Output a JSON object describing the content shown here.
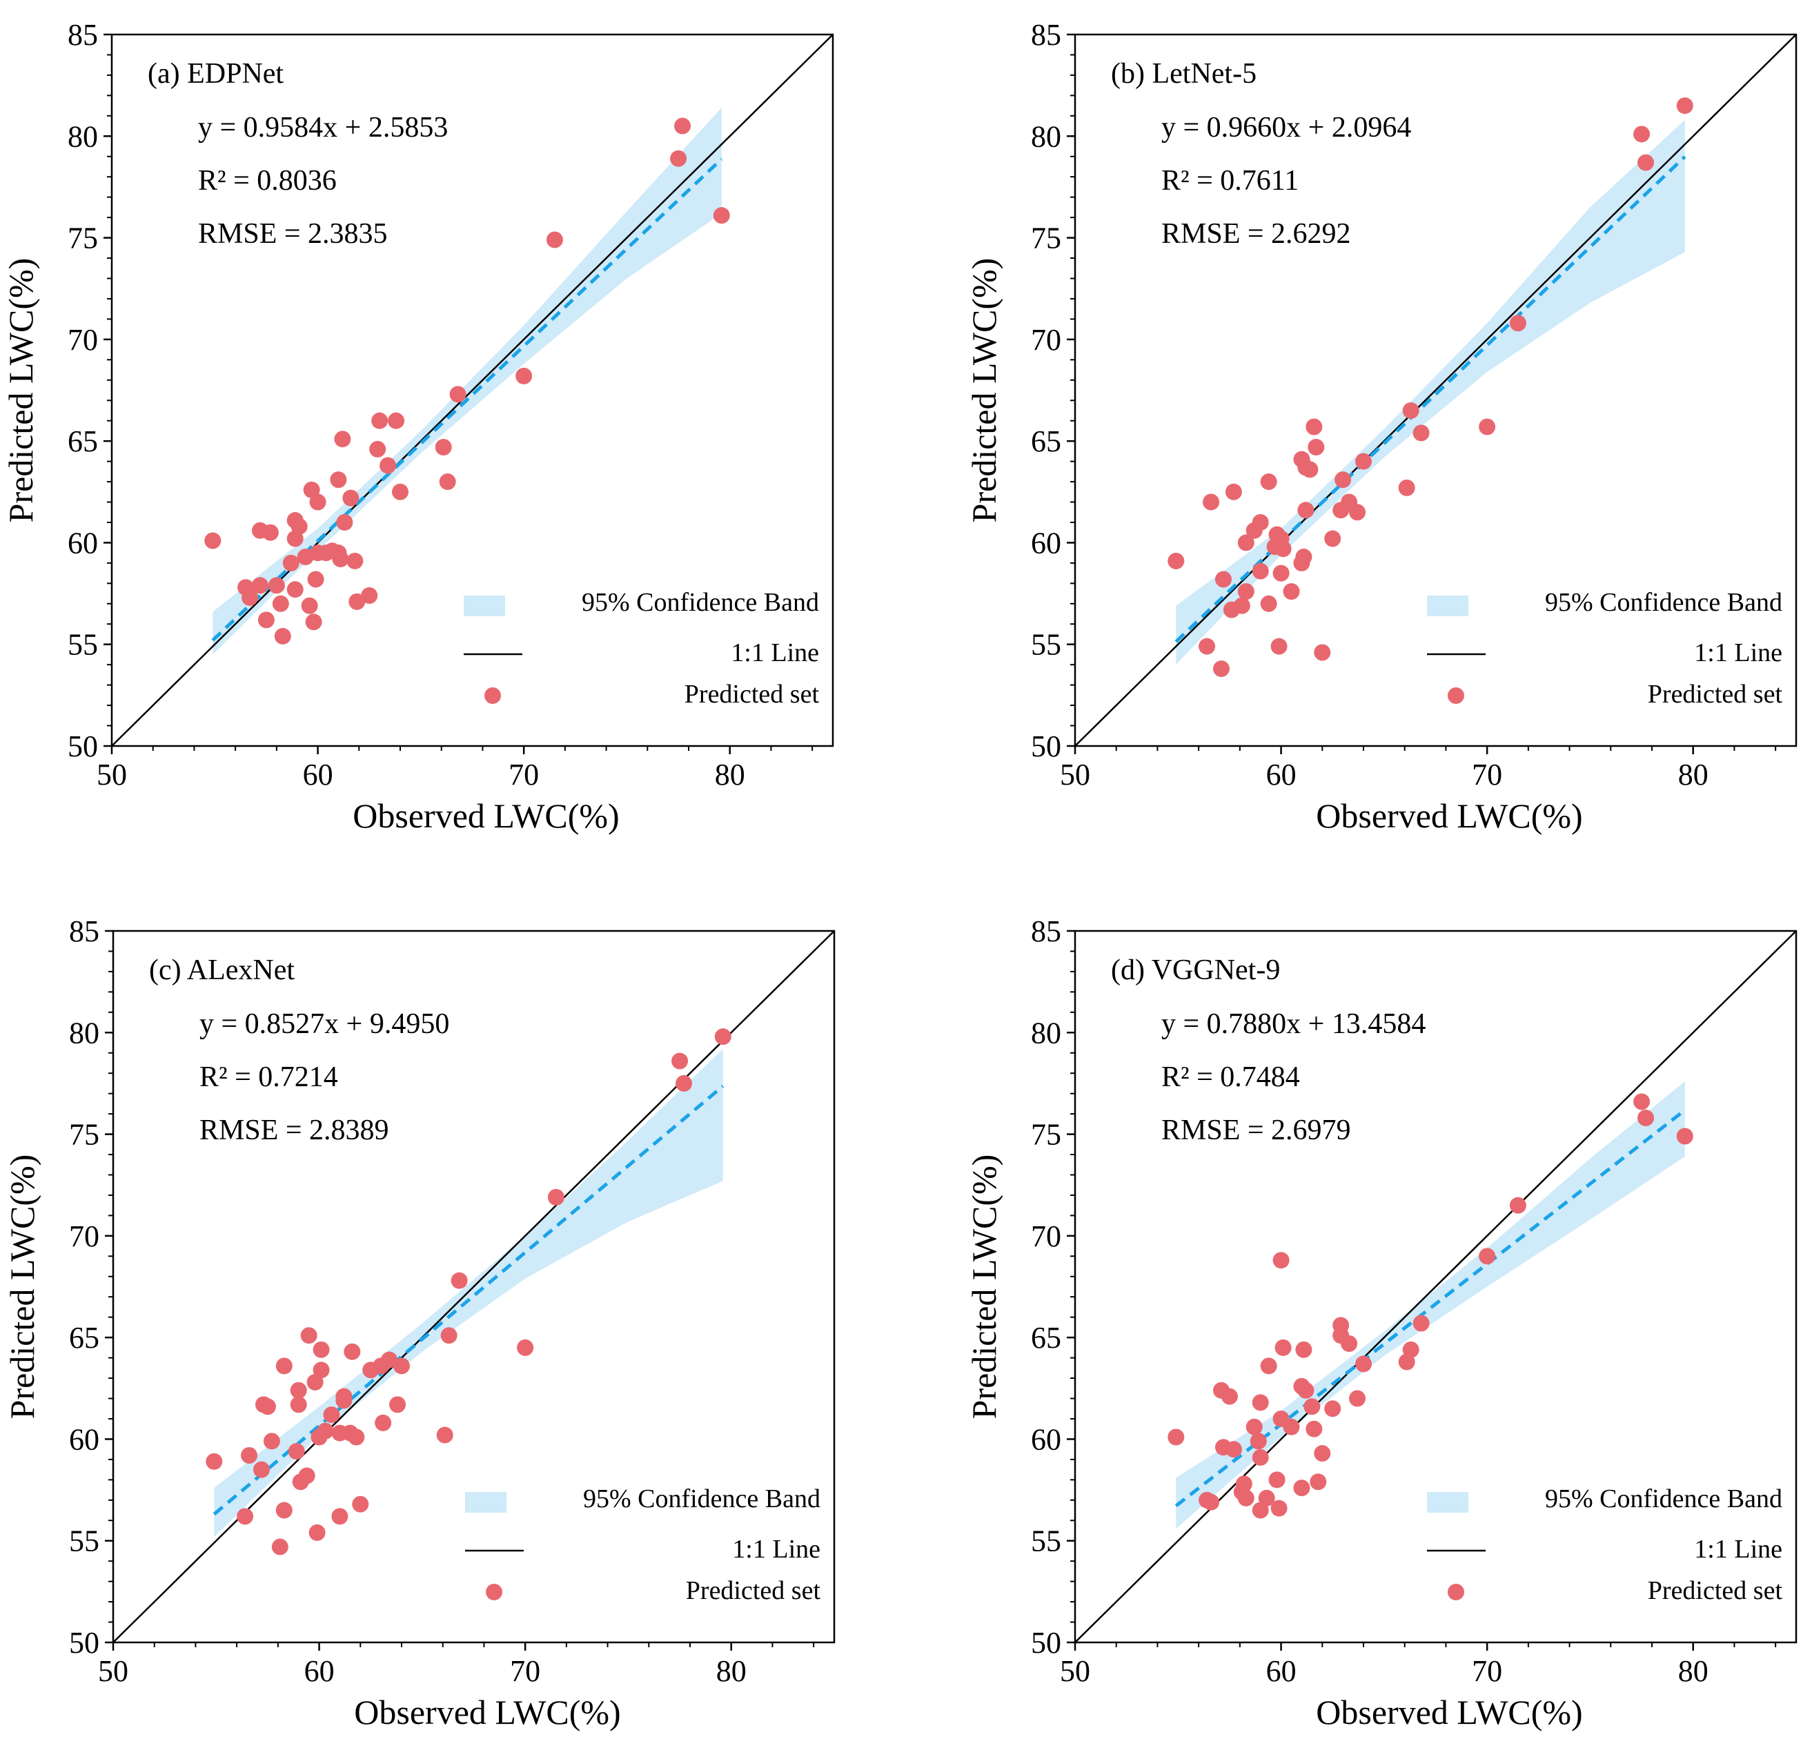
{
  "chart_data": [
    {
      "type": "scatter",
      "title": "(a) EDPNet",
      "xlabel": "Observed LWC(%)",
      "ylabel": "Predicted LWC(%)",
      "xlim": [
        50,
        85
      ],
      "ylim": [
        50,
        85
      ],
      "xticks": [
        50,
        60,
        70,
        80
      ],
      "yticks": [
        50,
        55,
        60,
        65,
        70,
        75,
        80,
        85
      ],
      "equation": "y = 0.9584x + 2.5853",
      "r2": "R² = 0.8036",
      "rmse": "RMSE = 2.3835",
      "fit": {
        "slope": 0.9584,
        "intercept": 2.5853,
        "x_range": [
          54.9,
          79.6
        ]
      },
      "ci_band": {
        "x": [
          54.9,
          60,
          65,
          70,
          75,
          79.6
        ],
        "lower": [
          54.5,
          59.6,
          64.4,
          68.8,
          73.0,
          76.2
        ],
        "upper": [
          56.6,
          60.7,
          65.5,
          70.7,
          76.3,
          81.4
        ]
      },
      "legend": {
        "position": "lower-right",
        "entries": [
          "95% Confidence Band",
          "1:1 Line",
          "Predicted set"
        ]
      },
      "points": [
        [
          54.9,
          60.1
        ],
        [
          56.5,
          57.8
        ],
        [
          56.7,
          57.3
        ],
        [
          57.2,
          57.9
        ],
        [
          57.2,
          60.6
        ],
        [
          57.5,
          56.2
        ],
        [
          57.7,
          60.5
        ],
        [
          58.0,
          57.9
        ],
        [
          58.2,
          57.0
        ],
        [
          58.3,
          55.4
        ],
        [
          58.7,
          59.0
        ],
        [
          58.9,
          57.7
        ],
        [
          58.9,
          60.2
        ],
        [
          58.9,
          61.1
        ],
        [
          59.1,
          60.8
        ],
        [
          59.4,
          59.3
        ],
        [
          59.6,
          56.9
        ],
        [
          59.7,
          62.6
        ],
        [
          59.8,
          56.1
        ],
        [
          59.9,
          58.2
        ],
        [
          60.0,
          62.0
        ],
        [
          60.0,
          59.5
        ],
        [
          60.4,
          59.5
        ],
        [
          60.7,
          59.6
        ],
        [
          61.0,
          63.1
        ],
        [
          61.0,
          59.5
        ],
        [
          61.1,
          59.2
        ],
        [
          61.2,
          65.1
        ],
        [
          61.3,
          61.0
        ],
        [
          61.6,
          62.2
        ],
        [
          61.8,
          59.1
        ],
        [
          61.9,
          57.1
        ],
        [
          62.5,
          57.4
        ],
        [
          62.9,
          64.6
        ],
        [
          63.0,
          66.0
        ],
        [
          63.4,
          63.8
        ],
        [
          63.8,
          66.0
        ],
        [
          64.0,
          62.5
        ],
        [
          66.1,
          64.7
        ],
        [
          66.3,
          63.0
        ],
        [
          66.8,
          67.3
        ],
        [
          70.0,
          68.2
        ],
        [
          71.5,
          74.9
        ],
        [
          77.5,
          78.9
        ],
        [
          77.7,
          80.5
        ],
        [
          79.6,
          76.1
        ]
      ]
    },
    {
      "type": "scatter",
      "title": "(b) LetNet-5",
      "xlabel": "Observed LWC(%)",
      "ylabel": "Predicted LWC(%)",
      "xlim": [
        50,
        85
      ],
      "ylim": [
        50,
        85
      ],
      "xticks": [
        50,
        60,
        70,
        80
      ],
      "yticks": [
        50,
        55,
        60,
        65,
        70,
        75,
        80,
        85
      ],
      "equation": "y = 0.9660x + 2.0964",
      "r2": "R² = 0.7611",
      "rmse": "RMSE = 2.6292",
      "fit": {
        "slope": 0.966,
        "intercept": 2.0964,
        "x_range": [
          54.9,
          79.6
        ]
      },
      "ci_band": {
        "x": [
          54.9,
          60,
          65,
          70,
          75,
          79.6
        ],
        "lower": [
          54.0,
          59.4,
          64.2,
          68.4,
          71.8,
          74.3
        ],
        "upper": [
          56.9,
          60.7,
          65.6,
          70.8,
          76.5,
          80.8
        ]
      },
      "legend": {
        "position": "lower-right",
        "entries": [
          "95% Confidence Band",
          "1:1 Line",
          "Predicted set"
        ]
      },
      "points": [
        [
          54.9,
          59.1
        ],
        [
          56.4,
          54.9
        ],
        [
          56.6,
          62.0
        ],
        [
          57.1,
          53.8
        ],
        [
          57.2,
          58.2
        ],
        [
          57.6,
          56.7
        ],
        [
          57.7,
          62.5
        ],
        [
          58.1,
          56.9
        ],
        [
          58.3,
          57.6
        ],
        [
          58.3,
          60.0
        ],
        [
          58.7,
          60.6
        ],
        [
          59.0,
          58.6
        ],
        [
          59.0,
          61.0
        ],
        [
          59.4,
          57.0
        ],
        [
          59.4,
          63.0
        ],
        [
          59.7,
          59.8
        ],
        [
          59.8,
          60.4
        ],
        [
          59.9,
          54.9
        ],
        [
          60.0,
          58.5
        ],
        [
          60.0,
          60.2
        ],
        [
          60.1,
          59.7
        ],
        [
          60.5,
          57.6
        ],
        [
          61.0,
          59.0
        ],
        [
          61.0,
          64.1
        ],
        [
          61.1,
          59.3
        ],
        [
          61.2,
          63.7
        ],
        [
          61.2,
          61.6
        ],
        [
          61.4,
          63.6
        ],
        [
          61.6,
          65.7
        ],
        [
          61.7,
          64.7
        ],
        [
          62.0,
          54.6
        ],
        [
          62.5,
          60.2
        ],
        [
          62.9,
          61.6
        ],
        [
          63.0,
          63.1
        ],
        [
          63.3,
          62.0
        ],
        [
          63.7,
          61.5
        ],
        [
          64.0,
          64.0
        ],
        [
          66.1,
          62.7
        ],
        [
          66.3,
          66.5
        ],
        [
          66.8,
          65.4
        ],
        [
          70.0,
          65.7
        ],
        [
          71.5,
          70.8
        ],
        [
          77.5,
          80.1
        ],
        [
          77.7,
          78.7
        ],
        [
          79.6,
          81.5
        ]
      ]
    },
    {
      "type": "scatter",
      "title": "(c) ALexNet",
      "xlabel": "Observed LWC(%)",
      "ylabel": "Predicted LWC(%)",
      "xlim": [
        50,
        85
      ],
      "ylim": [
        50,
        85
      ],
      "xticks": [
        50,
        60,
        70,
        80
      ],
      "yticks": [
        50,
        55,
        60,
        65,
        70,
        75,
        80,
        85
      ],
      "equation": "y = 0.8527x + 9.4950",
      "r2": "R² = 0.7214",
      "rmse": "RMSE = 2.8389",
      "fit": {
        "slope": 0.8527,
        "intercept": 9.495,
        "x_range": [
          54.9,
          79.6
        ]
      },
      "ci_band": {
        "x": [
          54.9,
          60,
          65,
          70,
          75,
          79.6
        ],
        "lower": [
          55.2,
          60.2,
          64.3,
          67.9,
          70.7,
          72.7
        ],
        "upper": [
          57.6,
          61.6,
          65.7,
          70.0,
          74.7,
          79.2
        ]
      },
      "legend": {
        "position": "lower-right",
        "entries": [
          "95% Confidence Band",
          "1:1 Line",
          "Predicted set"
        ]
      },
      "points": [
        [
          54.9,
          58.9
        ],
        [
          56.4,
          56.2
        ],
        [
          56.6,
          59.2
        ],
        [
          57.2,
          58.5
        ],
        [
          57.3,
          61.7
        ],
        [
          57.5,
          61.6
        ],
        [
          57.7,
          59.9
        ],
        [
          58.1,
          54.7
        ],
        [
          58.3,
          63.6
        ],
        [
          58.3,
          56.5
        ],
        [
          58.9,
          59.4
        ],
        [
          59.0,
          61.7
        ],
        [
          59.0,
          62.4
        ],
        [
          59.1,
          57.9
        ],
        [
          59.4,
          58.2
        ],
        [
          59.5,
          65.1
        ],
        [
          59.8,
          62.8
        ],
        [
          59.9,
          55.4
        ],
        [
          60.0,
          60.1
        ],
        [
          60.1,
          64.4
        ],
        [
          60.1,
          63.4
        ],
        [
          60.3,
          60.4
        ],
        [
          60.6,
          61.2
        ],
        [
          61.0,
          56.2
        ],
        [
          61.0,
          60.3
        ],
        [
          61.2,
          61.9
        ],
        [
          61.2,
          62.1
        ],
        [
          61.5,
          60.3
        ],
        [
          61.6,
          64.3
        ],
        [
          61.8,
          60.1
        ],
        [
          62.0,
          56.8
        ],
        [
          62.5,
          63.4
        ],
        [
          63.0,
          63.6
        ],
        [
          63.1,
          60.8
        ],
        [
          63.4,
          63.9
        ],
        [
          63.8,
          61.7
        ],
        [
          64.0,
          63.6
        ],
        [
          66.1,
          60.2
        ],
        [
          66.3,
          65.1
        ],
        [
          66.8,
          67.8
        ],
        [
          70.0,
          64.5
        ],
        [
          71.5,
          71.9
        ],
        [
          77.5,
          78.6
        ],
        [
          77.7,
          77.5
        ],
        [
          79.6,
          79.8
        ]
      ]
    },
    {
      "type": "scatter",
      "title": "(d) VGGNet-9",
      "xlabel": "Observed LWC(%)",
      "ylabel": "Predicted LWC(%)",
      "xlim": [
        50,
        85
      ],
      "ylim": [
        50,
        85
      ],
      "xticks": [
        50,
        60,
        70,
        80
      ],
      "yticks": [
        50,
        55,
        60,
        65,
        70,
        75,
        80,
        85
      ],
      "equation": "y = 0.7880x + 13.4584",
      "r2": "R² = 0.7484",
      "rmse": "RMSE = 2.6979",
      "fit": {
        "slope": 0.788,
        "intercept": 13.4584,
        "x_range": [
          54.9,
          79.6
        ]
      },
      "ci_band": {
        "x": [
          54.9,
          60,
          65,
          70,
          75,
          79.6
        ],
        "lower": [
          55.6,
          60.1,
          64.1,
          67.5,
          70.8,
          73.9
        ],
        "upper": [
          58.1,
          61.4,
          65.3,
          69.4,
          73.8,
          77.6
        ]
      },
      "legend": {
        "position": "lower-right",
        "entries": [
          "95% Confidence Band",
          "1:1 Line",
          "Predicted set"
        ]
      },
      "points": [
        [
          54.9,
          60.1
        ],
        [
          56.4,
          57.0
        ],
        [
          56.6,
          56.9
        ],
        [
          57.1,
          62.4
        ],
        [
          57.2,
          59.6
        ],
        [
          57.5,
          62.1
        ],
        [
          57.7,
          59.5
        ],
        [
          58.1,
          57.4
        ],
        [
          58.2,
          57.8
        ],
        [
          58.3,
          57.1
        ],
        [
          58.7,
          60.6
        ],
        [
          58.9,
          59.9
        ],
        [
          59.0,
          61.8
        ],
        [
          59.0,
          56.5
        ],
        [
          59.0,
          59.1
        ],
        [
          59.3,
          57.1
        ],
        [
          59.4,
          63.6
        ],
        [
          59.8,
          58.0
        ],
        [
          59.9,
          56.6
        ],
        [
          60.0,
          61.0
        ],
        [
          60.0,
          68.8
        ],
        [
          60.1,
          64.5
        ],
        [
          60.5,
          60.6
        ],
        [
          61.0,
          62.6
        ],
        [
          61.0,
          57.6
        ],
        [
          61.1,
          64.4
        ],
        [
          61.2,
          62.4
        ],
        [
          61.5,
          61.6
        ],
        [
          61.6,
          60.5
        ],
        [
          61.8,
          57.9
        ],
        [
          62.0,
          59.3
        ],
        [
          62.5,
          61.5
        ],
        [
          62.9,
          65.6
        ],
        [
          62.9,
          65.1
        ],
        [
          63.3,
          64.7
        ],
        [
          63.7,
          62.0
        ],
        [
          64.0,
          63.7
        ],
        [
          66.1,
          63.8
        ],
        [
          66.3,
          64.4
        ],
        [
          66.8,
          65.7
        ],
        [
          70.0,
          69.0
        ],
        [
          71.5,
          71.5
        ],
        [
          77.5,
          76.6
        ],
        [
          77.7,
          75.8
        ],
        [
          79.6,
          74.9
        ]
      ]
    }
  ],
  "colors": {
    "band": "#a8d8f4",
    "fit": "#1aa3e8",
    "points": "#e8676f",
    "identity": "#000000"
  }
}
